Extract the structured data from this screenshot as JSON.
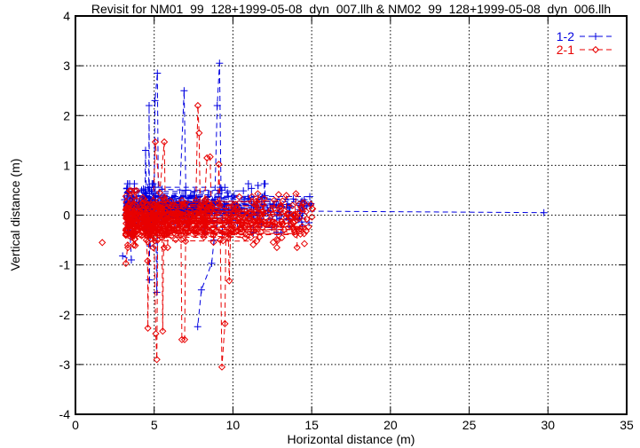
{
  "chart_data": {
    "type": "line",
    "title": "Revisit for NM01_99_128+1999-05-08_dyn_007.llh & NM02_99_128+1999-05-08_dyn_006.llh",
    "xlabel": "Horizontal distance (m)",
    "ylabel": "Vertical distance (m)",
    "xlim": [
      0,
      35
    ],
    "ylim": [
      -4,
      4
    ],
    "x_ticks": [
      0,
      5,
      10,
      15,
      20,
      25,
      30,
      35
    ],
    "y_ticks": [
      -4,
      -3,
      -2,
      -1,
      0,
      1,
      2,
      3,
      4
    ],
    "grid": true,
    "grid_style": "dotted",
    "legend_position": "top-right-inside",
    "background": "#ffffff",
    "axis_color": "#000000",
    "series": [
      {
        "name": "1-2",
        "color": "#0000e0",
        "marker": "plus",
        "linestyle": "dashed",
        "features": {
          "description": "dense noisy band of vertical-vs-horizontal revisit differences, x 3.2-15 m, y mostly -0.3..+0.55 m, with isolated spikes",
          "spikes": [
            [
              [
                3.25,
                0.53
              ],
              [
                3.12,
                0.31
              ],
              [
                3.3,
                0.16
              ]
            ],
            [
              [
                3.0,
                -0.82
              ],
              [
                3.55,
                -0.9
              ],
              [
                3.45,
                -0.25
              ]
            ],
            [
              [
                4.4,
                0.12
              ],
              [
                4.45,
                1.3
              ],
              [
                4.52,
                0.22
              ]
            ],
            [
              [
                4.65,
                0.3
              ],
              [
                4.68,
                2.2
              ],
              [
                4.7,
                -1.3
              ],
              [
                4.72,
                0.55
              ],
              [
                4.74,
                -0.62
              ],
              [
                4.78,
                0.1
              ]
            ],
            [
              [
                5.0,
                0.22
              ],
              [
                5.05,
                2.3
              ],
              [
                5.2,
                2.85
              ],
              [
                5.27,
                0.1
              ]
            ],
            [
              [
                5.12,
                -0.3
              ],
              [
                5.16,
                -1.55
              ],
              [
                5.22,
                -0.2
              ]
            ],
            [
              [
                6.6,
                0.25
              ],
              [
                6.9,
                2.5
              ],
              [
                7.05,
                -0.2
              ]
            ],
            [
              [
                8.85,
                0.32
              ],
              [
                9.0,
                2.2
              ],
              [
                9.15,
                3.05
              ],
              [
                9.25,
                0.35
              ]
            ],
            [
              [
                8.8,
                -0.5
              ],
              [
                8.65,
                -0.97
              ],
              [
                8.0,
                -1.5
              ],
              [
                7.76,
                -2.24
              ]
            ],
            [
              [
                4.2,
                0.5
              ],
              [
                5.5,
                0.52
              ],
              [
                7.0,
                0.5
              ],
              [
                9.3,
                0.5
              ]
            ]
          ],
          "tail_line": [
            [
              14.3,
              0.08
            ],
            [
              29.74,
              0.05
            ]
          ],
          "band": {
            "x_min": 3.25,
            "x_max": 15.0,
            "y_center": 0.16,
            "y_sigma": 0.3,
            "y_clip": [
              -0.28,
              0.56
            ],
            "segments": 85,
            "scatter": 160,
            "seed": 7
          }
        }
      },
      {
        "name": "2-1",
        "color": "#e80000",
        "marker": "diamond",
        "linestyle": "dashed",
        "features": {
          "description": "dense noisy band slightly below zero, x 3.2-15.1 m, y mostly -0.58..+0.42 m, with downward spikes to -3 m",
          "spikes": [
            [
              [
                1.7,
                -0.55
              ]
            ],
            [
              [
                3.2,
                -0.97
              ],
              [
                3.32,
                -0.6
              ]
            ],
            [
              [
                4.5,
                -0.5
              ],
              [
                4.58,
                -0.92
              ],
              [
                4.6,
                -2.27
              ],
              [
                4.66,
                -0.4
              ]
            ],
            [
              [
                5.0,
                -0.45
              ],
              [
                5.1,
                -2.38
              ],
              [
                5.17,
                -2.9
              ],
              [
                5.22,
                -0.5
              ]
            ],
            [
              [
                5.5,
                -0.45
              ],
              [
                5.54,
                -2.33
              ],
              [
                5.6,
                -0.4
              ]
            ],
            [
              [
                6.7,
                -0.4
              ],
              [
                6.76,
                -2.5
              ],
              [
                6.93,
                -2.5
              ],
              [
                7.0,
                -0.35
              ]
            ],
            [
              [
                9.2,
                -0.5
              ],
              [
                9.3,
                -3.05
              ],
              [
                9.49,
                -2.18
              ],
              [
                9.55,
                -0.45
              ]
            ],
            [
              [
                9.7,
                -0.35
              ],
              [
                9.77,
                -1.32
              ],
              [
                9.85,
                -0.3
              ]
            ],
            [
              [
                4.95,
                0.3
              ],
              [
                5.07,
                1.47
              ],
              [
                5.35,
                0.45
              ],
              [
                5.64,
                1.47
              ],
              [
                5.7,
                0.3
              ]
            ],
            [
              [
                7.65,
                0.3
              ],
              [
                7.77,
                2.2
              ],
              [
                7.85,
                1.65
              ],
              [
                7.92,
                0.2
              ]
            ],
            [
              [
                8.2,
                0.3
              ],
              [
                8.35,
                1.15
              ],
              [
                8.55,
                1.17
              ],
              [
                8.62,
                0.2
              ]
            ],
            [
              [
                9.05,
                0.25
              ],
              [
                9.1,
                1.02
              ],
              [
                9.18,
                0.2
              ]
            ],
            [
              [
                13.9,
                -0.3
              ],
              [
                14.0,
                0.43
              ],
              [
                14.5,
                0.25
              ],
              [
                14.65,
                -0.32
              ]
            ],
            [
              [
                14.2,
                0.22
              ],
              [
                14.94,
                0.22
              ]
            ]
          ],
          "band": {
            "x_min": 3.2,
            "x_max": 15.1,
            "y_center": -0.11,
            "y_sigma": 0.33,
            "y_clip": [
              -0.58,
              0.42
            ],
            "segments": 105,
            "scatter": 200,
            "seed": 13
          }
        }
      }
    ]
  }
}
